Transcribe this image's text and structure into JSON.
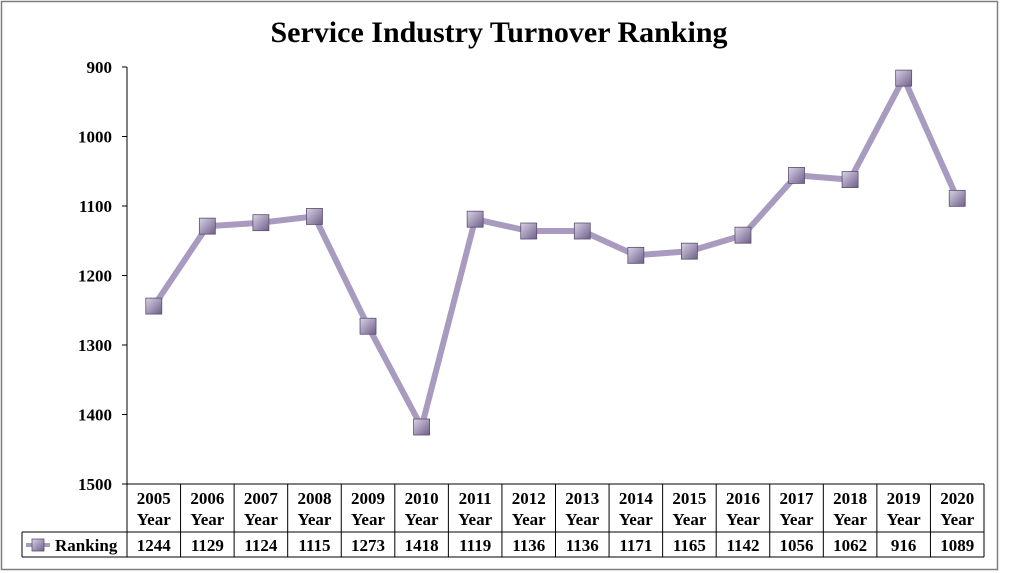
{
  "chart_data": {
    "type": "line",
    "title": "Service Industry Turnover Ranking",
    "xlabel": "",
    "ylabel": "",
    "y_inverted": true,
    "ylim": [
      900,
      1500
    ],
    "yticks": [
      "900",
      "1000",
      "1100",
      "1200",
      "1300",
      "1400",
      "1500"
    ],
    "ytick_values": [
      900,
      1000,
      1100,
      1200,
      1300,
      1400,
      1500
    ],
    "categories": [
      {
        "year": "2005",
        "unit": "Year"
      },
      {
        "year": "2006",
        "unit": "Year"
      },
      {
        "year": "2007",
        "unit": "Year"
      },
      {
        "year": "2008",
        "unit": "Year"
      },
      {
        "year": "2009",
        "unit": "Year"
      },
      {
        "year": "2010",
        "unit": "Year"
      },
      {
        "year": "2011",
        "unit": "Year"
      },
      {
        "year": "2012",
        "unit": "Year"
      },
      {
        "year": "2013",
        "unit": "Year"
      },
      {
        "year": "2014",
        "unit": "Year"
      },
      {
        "year": "2015",
        "unit": "Year"
      },
      {
        "year": "2016",
        "unit": "Year"
      },
      {
        "year": "2017",
        "unit": "Year"
      },
      {
        "year": "2018",
        "unit": "Year"
      },
      {
        "year": "2019",
        "unit": "Year"
      },
      {
        "year": "2020",
        "unit": "Year"
      }
    ],
    "series": [
      {
        "name": "Ranking",
        "values": [
          1244,
          1129,
          1124,
          1115,
          1273,
          1418,
          1119,
          1136,
          1136,
          1171,
          1165,
          1142,
          1056,
          1062,
          916,
          1089
        ]
      }
    ],
    "grid": false,
    "legend": "data-table",
    "colors": {
      "line": "#A99BBF",
      "marker_light": "#D9D2E6",
      "marker_dark": "#6E5F88",
      "border": "#7F7F7F"
    }
  }
}
